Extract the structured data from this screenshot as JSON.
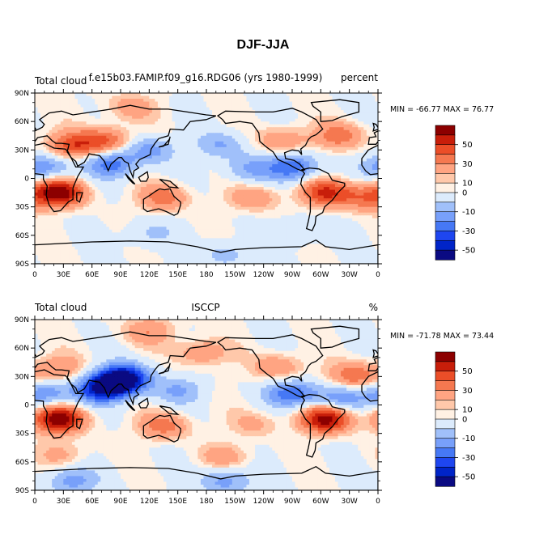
{
  "figure_title": "DJF-JJA",
  "colors": {
    "palette": [
      "#0a0a82",
      "#0024c8",
      "#1e46f0",
      "#4678f5",
      "#78a0fa",
      "#a0c0fa",
      "#dcebfc",
      "#fff1e4",
      "#ffc8aa",
      "#ffa482",
      "#f57850",
      "#eb4e28",
      "#c81e0a",
      "#8c0000"
    ],
    "land_outline": "#000000",
    "frame": "#000000"
  },
  "chart_data": [
    {
      "type": "heatmap",
      "subtype": "global contour map",
      "left_label": "Total cloud",
      "center_label": "f.e15b03.FAMIP.f09_g16.RDG06 (yrs 1980-1999)",
      "right_label": "percent",
      "stats": "MIN = -66.77  MAX =  76.77",
      "min": -66.77,
      "max": 76.77,
      "x_ticks": [
        "0",
        "30E",
        "60E",
        "90E",
        "120E",
        "150E",
        "180",
        "150W",
        "120W",
        "90W",
        "60W",
        "30W",
        "0"
      ],
      "y_ticks": [
        "90N",
        "60N",
        "30N",
        "0",
        "30S",
        "60S",
        "90S"
      ],
      "xlim": [
        0,
        360
      ],
      "ylim": [
        -90,
        90
      ],
      "colorbar_levels": [
        -60,
        -50,
        -40,
        -30,
        -20,
        -10,
        0,
        5,
        10,
        20,
        30,
        40,
        50,
        60
      ],
      "colorbar_labels": [
        "50",
        "30",
        "10",
        "0",
        "-10",
        "-30",
        "-50"
      ],
      "features": [
        {
          "name": "north-africa-eurasia-positive",
          "lon": 40,
          "lat": 35,
          "value": 35
        },
        {
          "name": "central-asia-positive",
          "lon": 75,
          "lat": 40,
          "value": 30
        },
        {
          "name": "southern-africa-strong-positive",
          "lon": 25,
          "lat": -15,
          "value": 60
        },
        {
          "name": "south-america-positive",
          "lon": 305,
          "lat": -15,
          "value": 40
        },
        {
          "name": "north-atlantic-positive",
          "lon": 320,
          "lat": 45,
          "value": 25
        },
        {
          "name": "north-america-positive",
          "lon": 260,
          "lat": 40,
          "value": 20
        },
        {
          "name": "australia-positive",
          "lon": 135,
          "lat": -20,
          "value": 25
        },
        {
          "name": "south-pacific-positive",
          "lon": 230,
          "lat": -20,
          "value": 18
        },
        {
          "name": "south-atlantic-positive",
          "lon": 345,
          "lat": -20,
          "value": 25
        },
        {
          "name": "indian-monsoon-negative",
          "lon": 80,
          "lat": 15,
          "value": -35
        },
        {
          "name": "west-africa-sahel-negative",
          "lon": 10,
          "lat": 12,
          "value": -30
        },
        {
          "name": "central-america-negative",
          "lon": 270,
          "lat": 12,
          "value": -40
        },
        {
          "name": "north-pacific-negative",
          "lon": 195,
          "lat": 35,
          "value": -20
        },
        {
          "name": "east-asia-negative",
          "lon": 120,
          "lat": 30,
          "value": -25
        },
        {
          "name": "eastern-pacific-negative",
          "lon": 225,
          "lat": 10,
          "value": -20
        },
        {
          "name": "southern-ocean-negative",
          "lon": 120,
          "lat": -58,
          "value": -12
        },
        {
          "name": "southern-ocean-negative-2",
          "lon": 280,
          "lat": -55,
          "value": -12
        },
        {
          "name": "antarctica-negative",
          "lon": 200,
          "lat": -80,
          "value": -15
        },
        {
          "name": "arctic-positive",
          "lon": 100,
          "lat": 75,
          "value": 15
        }
      ]
    },
    {
      "type": "heatmap",
      "subtype": "global contour map",
      "left_label": "Total cloud",
      "center_label": "ISCCP",
      "right_label": "%",
      "stats": "MIN = -71.78  MAX =  73.44",
      "min": -71.78,
      "max": 73.44,
      "x_ticks": [
        "0",
        "30E",
        "60E",
        "90E",
        "120E",
        "150E",
        "180",
        "150W",
        "120W",
        "90W",
        "60W",
        "30W",
        "0"
      ],
      "y_ticks": [
        "90N",
        "60N",
        "30N",
        "0",
        "30S",
        "60S",
        "90S"
      ],
      "xlim": [
        0,
        360
      ],
      "ylim": [
        -90,
        90
      ],
      "colorbar_levels": [
        -60,
        -50,
        -40,
        -30,
        -20,
        -10,
        0,
        5,
        10,
        20,
        30,
        40,
        50,
        60
      ],
      "colorbar_labels": [
        "50",
        "30",
        "10",
        "0",
        "-10",
        "-30",
        "-50"
      ],
      "features": [
        {
          "name": "southern-africa-strong-positive",
          "lon": 25,
          "lat": -15,
          "value": 60
        },
        {
          "name": "south-america-strong-positive",
          "lon": 305,
          "lat": -15,
          "value": 55
        },
        {
          "name": "west-africa-negative",
          "lon": 10,
          "lat": 12,
          "value": -30
        },
        {
          "name": "indian-monsoon-strong-negative",
          "lon": 85,
          "lat": 22,
          "value": -60
        },
        {
          "name": "tibet-negative",
          "lon": 95,
          "lat": 30,
          "value": -45
        },
        {
          "name": "arabian-sea-negative",
          "lon": 65,
          "lat": 15,
          "value": -35
        },
        {
          "name": "central-america-negative",
          "lon": 270,
          "lat": 12,
          "value": -40
        },
        {
          "name": "north-atlantic-negative",
          "lon": 320,
          "lat": 8,
          "value": -25
        },
        {
          "name": "mediterranean-positive",
          "lon": 25,
          "lat": 38,
          "value": 20
        },
        {
          "name": "north-pacific-positive",
          "lon": 175,
          "lat": 55,
          "value": 20
        },
        {
          "name": "north-atlantic-positive",
          "lon": 335,
          "lat": 30,
          "value": 30
        },
        {
          "name": "north-america-positive",
          "lon": 255,
          "lat": 40,
          "value": 20
        },
        {
          "name": "australia-positive",
          "lon": 135,
          "lat": -22,
          "value": 25
        },
        {
          "name": "south-pacific-positive",
          "lon": 230,
          "lat": -20,
          "value": 12
        },
        {
          "name": "southern-ocean-positive",
          "lon": 200,
          "lat": -55,
          "value": 15
        },
        {
          "name": "southern-ocean-positive-2",
          "lon": 30,
          "lat": -52,
          "value": 12
        },
        {
          "name": "antarctica-negative",
          "lon": 200,
          "lat": -80,
          "value": -25
        },
        {
          "name": "antarctica-negative-2",
          "lon": 40,
          "lat": -80,
          "value": -25
        },
        {
          "name": "arctic-positive",
          "lon": 120,
          "lat": 78,
          "value": 18
        },
        {
          "name": "western-pacific-negative",
          "lon": 150,
          "lat": 15,
          "value": -20
        }
      ]
    }
  ]
}
